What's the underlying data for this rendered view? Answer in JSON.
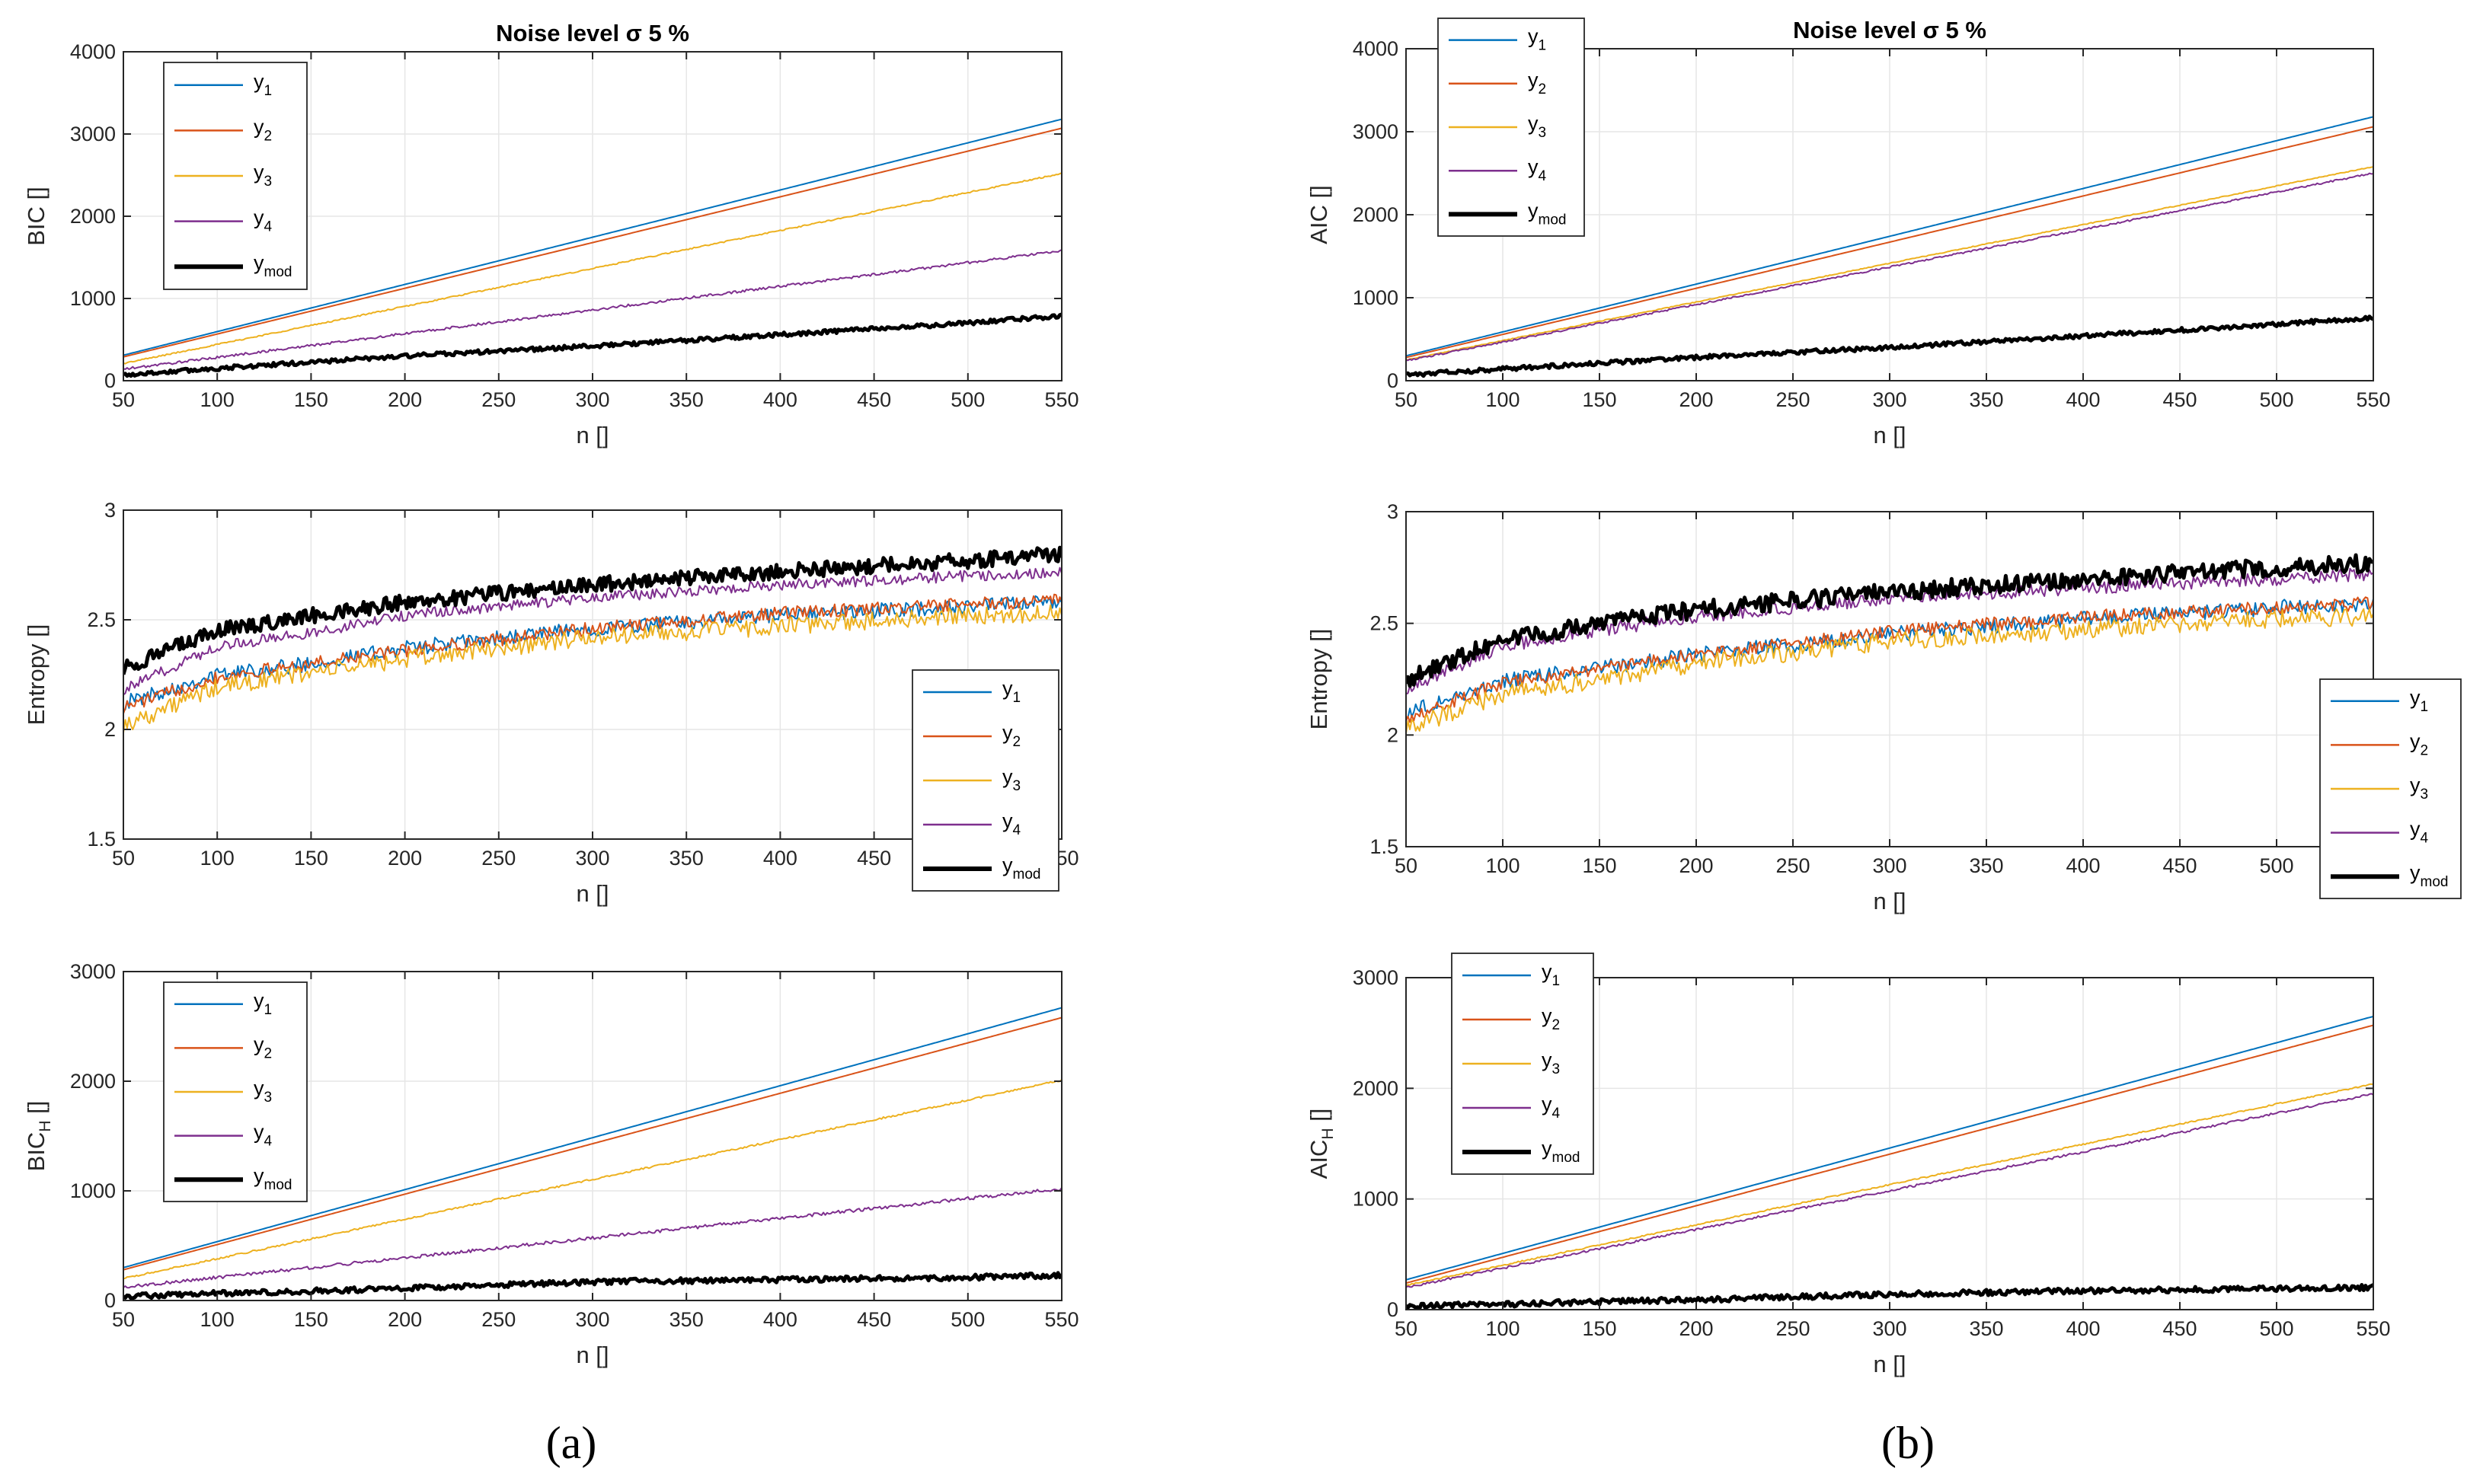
{
  "page": {
    "label_a": "(a)",
    "label_b": "(b)"
  },
  "legend": {
    "series_names": [
      "y1",
      "y2",
      "y3",
      "y4",
      "ymod"
    ],
    "series_display": [
      {
        "base": "y",
        "sub": "1"
      },
      {
        "base": "y",
        "sub": "2"
      },
      {
        "base": "y",
        "sub": "3"
      },
      {
        "base": "y",
        "sub": "4"
      },
      {
        "base": "y",
        "sub": "mod"
      }
    ]
  },
  "colors": {
    "y1": "#0072BD",
    "y2": "#D95319",
    "y3": "#EDB120",
    "y4": "#7E2F8E",
    "ymod": "#000000",
    "grid": "#e6e6e6",
    "axis": "#262626"
  },
  "chart_data": [
    {
      "id": "a1",
      "type": "line",
      "title": "Noise level σ 5 %",
      "xlabel": "n []",
      "ylabel": "BIC []",
      "ylabel_sub": "",
      "xlim": [
        50,
        550
      ],
      "ylim": [
        0,
        4000
      ],
      "xticks": [
        50,
        100,
        150,
        200,
        250,
        300,
        350,
        400,
        450,
        500,
        550
      ],
      "yticks": [
        0,
        1000,
        2000,
        3000,
        4000
      ],
      "grid": true,
      "legend": "top-left",
      "series": [
        {
          "name": "y1",
          "x": [
            50,
            550
          ],
          "y": [
            310,
            3180
          ],
          "noise": 0,
          "lw": 2
        },
        {
          "name": "y2",
          "x": [
            50,
            550
          ],
          "y": [
            290,
            3070
          ],
          "noise": 0,
          "lw": 2
        },
        {
          "name": "y3",
          "x": [
            50,
            550
          ],
          "y": [
            210,
            2520
          ],
          "noise": 8,
          "lw": 2
        },
        {
          "name": "y4",
          "x": [
            50,
            550
          ],
          "y": [
            140,
            1580
          ],
          "noise": 15,
          "lw": 2
        },
        {
          "name": "ymod",
          "x": [
            50,
            100,
            200,
            300,
            400,
            500,
            550
          ],
          "y": [
            70,
            150,
            300,
            420,
            560,
            700,
            790
          ],
          "noise": 25,
          "lw": 5
        }
      ]
    },
    {
      "id": "a2",
      "type": "line",
      "title": "",
      "xlabel": "n []",
      "ylabel": "Entropy []",
      "ylabel_sub": "",
      "xlim": [
        50,
        550
      ],
      "ylim": [
        1.5,
        3
      ],
      "xticks": [
        50,
        100,
        150,
        200,
        250,
        300,
        350,
        400,
        450,
        500,
        550
      ],
      "yticks": [
        1.5,
        2,
        2.5,
        3
      ],
      "grid": true,
      "legend": "bottom-right",
      "series": [
        {
          "name": "y1",
          "x": [
            50,
            100,
            150,
            200,
            300,
            400,
            500,
            550
          ],
          "y": [
            2.12,
            2.25,
            2.3,
            2.37,
            2.46,
            2.52,
            2.56,
            2.58
          ],
          "noise": 0.035,
          "lw": 2
        },
        {
          "name": "y2",
          "x": [
            50,
            100,
            150,
            200,
            300,
            400,
            500,
            550
          ],
          "y": [
            2.1,
            2.24,
            2.3,
            2.36,
            2.46,
            2.53,
            2.57,
            2.59
          ],
          "noise": 0.03,
          "lw": 2
        },
        {
          "name": "y3",
          "x": [
            50,
            100,
            150,
            200,
            300,
            400,
            500,
            550
          ],
          "y": [
            2.02,
            2.19,
            2.26,
            2.32,
            2.42,
            2.47,
            2.52,
            2.53
          ],
          "noise": 0.04,
          "lw": 2
        },
        {
          "name": "y4",
          "x": [
            50,
            100,
            150,
            200,
            300,
            400,
            500,
            550
          ],
          "y": [
            2.18,
            2.38,
            2.44,
            2.52,
            2.6,
            2.66,
            2.7,
            2.72
          ],
          "noise": 0.025,
          "lw": 2
        },
        {
          "name": "ymod",
          "x": [
            50,
            100,
            150,
            200,
            300,
            400,
            500,
            550
          ],
          "y": [
            2.28,
            2.45,
            2.52,
            2.58,
            2.66,
            2.72,
            2.77,
            2.8
          ],
          "noise": 0.035,
          "lw": 5
        }
      ]
    },
    {
      "id": "a3",
      "type": "line",
      "title": "",
      "xlabel": "n []",
      "ylabel": "BIC",
      "ylabel_sub": "H",
      "ylabel_suffix": " []",
      "xlim": [
        50,
        550
      ],
      "ylim": [
        0,
        3000
      ],
      "xticks": [
        50,
        100,
        150,
        200,
        250,
        300,
        350,
        400,
        450,
        500,
        550
      ],
      "yticks": [
        0,
        1000,
        2000,
        3000
      ],
      "grid": true,
      "legend": "top-left",
      "series": [
        {
          "name": "y1",
          "x": [
            50,
            550
          ],
          "y": [
            300,
            2670
          ],
          "noise": 0,
          "lw": 2
        },
        {
          "name": "y2",
          "x": [
            50,
            550
          ],
          "y": [
            280,
            2580
          ],
          "noise": 0,
          "lw": 2
        },
        {
          "name": "y3",
          "x": [
            50,
            550
          ],
          "y": [
            200,
            2010
          ],
          "noise": 8,
          "lw": 2
        },
        {
          "name": "y4",
          "x": [
            50,
            550
          ],
          "y": [
            120,
            1020
          ],
          "noise": 15,
          "lw": 2
        },
        {
          "name": "ymod",
          "x": [
            50,
            200,
            300,
            400,
            500,
            550
          ],
          "y": [
            40,
            110,
            170,
            190,
            210,
            230
          ],
          "noise": 25,
          "lw": 5
        }
      ]
    },
    {
      "id": "b1",
      "type": "line",
      "title": "Noise level σ 5 %",
      "xlabel": "n []",
      "ylabel": "AIC []",
      "ylabel_sub": "",
      "xlim": [
        50,
        550
      ],
      "ylim": [
        0,
        4000
      ],
      "xticks": [
        50,
        100,
        150,
        200,
        250,
        300,
        350,
        400,
        450,
        500,
        550
      ],
      "yticks": [
        0,
        1000,
        2000,
        3000,
        4000
      ],
      "grid": true,
      "legend": "top-left",
      "series": [
        {
          "name": "y1",
          "x": [
            50,
            550
          ],
          "y": [
            300,
            3180
          ],
          "noise": 0,
          "lw": 2
        },
        {
          "name": "y2",
          "x": [
            50,
            550
          ],
          "y": [
            280,
            3060
          ],
          "noise": 0,
          "lw": 2
        },
        {
          "name": "y3",
          "x": [
            50,
            550
          ],
          "y": [
            250,
            2580
          ],
          "noise": 5,
          "lw": 2
        },
        {
          "name": "y4",
          "x": [
            50,
            550
          ],
          "y": [
            240,
            2500
          ],
          "noise": 10,
          "lw": 2
        },
        {
          "name": "ymod",
          "x": [
            50,
            100,
            200,
            300,
            400,
            500,
            550
          ],
          "y": [
            70,
            140,
            280,
            400,
            540,
            680,
            760
          ],
          "noise": 25,
          "lw": 5
        }
      ]
    },
    {
      "id": "b2",
      "type": "line",
      "title": "",
      "xlabel": "n []",
      "ylabel": "Entropy []",
      "ylabel_sub": "",
      "xlim": [
        50,
        550
      ],
      "ylim": [
        1.5,
        3
      ],
      "xticks": [
        50,
        100,
        150,
        200,
        250,
        300,
        350,
        400,
        450,
        500,
        550
      ],
      "yticks": [
        1.5,
        2,
        2.5,
        3
      ],
      "grid": true,
      "legend": "bottom-right-outside",
      "series": [
        {
          "name": "y1",
          "x": [
            50,
            100,
            150,
            200,
            300,
            400,
            500,
            550
          ],
          "y": [
            2.1,
            2.24,
            2.3,
            2.36,
            2.45,
            2.52,
            2.57,
            2.59
          ],
          "noise": 0.035,
          "lw": 2
        },
        {
          "name": "y2",
          "x": [
            50,
            100,
            150,
            200,
            300,
            400,
            500,
            550
          ],
          "y": [
            2.08,
            2.23,
            2.3,
            2.36,
            2.46,
            2.53,
            2.57,
            2.59
          ],
          "noise": 0.03,
          "lw": 2
        },
        {
          "name": "y3",
          "x": [
            50,
            100,
            150,
            200,
            300,
            400,
            500,
            550
          ],
          "y": [
            2.03,
            2.18,
            2.25,
            2.32,
            2.42,
            2.47,
            2.52,
            2.53
          ],
          "noise": 0.04,
          "lw": 2
        },
        {
          "name": "y4",
          "x": [
            50,
            100,
            150,
            200,
            300,
            400,
            500,
            550
          ],
          "y": [
            2.2,
            2.4,
            2.47,
            2.53,
            2.61,
            2.66,
            2.7,
            2.72
          ],
          "noise": 0.03,
          "lw": 2
        },
        {
          "name": "ymod",
          "x": [
            50,
            100,
            150,
            200,
            300,
            400,
            500,
            550
          ],
          "y": [
            2.25,
            2.43,
            2.5,
            2.56,
            2.64,
            2.7,
            2.75,
            2.77
          ],
          "noise": 0.04,
          "lw": 5
        }
      ]
    },
    {
      "id": "b3",
      "type": "line",
      "title": "",
      "xlabel": "n []",
      "ylabel": "AIC",
      "ylabel_sub": "H",
      "ylabel_suffix": " []",
      "xlim": [
        50,
        550
      ],
      "ylim": [
        0,
        3000
      ],
      "xticks": [
        50,
        100,
        150,
        200,
        250,
        300,
        350,
        400,
        450,
        500,
        550
      ],
      "yticks": [
        0,
        1000,
        2000,
        3000
      ],
      "grid": true,
      "legend": "top-left",
      "series": [
        {
          "name": "y1",
          "x": [
            50,
            550
          ],
          "y": [
            270,
            2650
          ],
          "noise": 0,
          "lw": 2
        },
        {
          "name": "y2",
          "x": [
            50,
            550
          ],
          "y": [
            240,
            2570
          ],
          "noise": 0,
          "lw": 2
        },
        {
          "name": "y3",
          "x": [
            50,
            550
          ],
          "y": [
            220,
            2040
          ],
          "noise": 6,
          "lw": 2
        },
        {
          "name": "y4",
          "x": [
            50,
            550
          ],
          "y": [
            200,
            1950
          ],
          "noise": 10,
          "lw": 2
        },
        {
          "name": "ymod",
          "x": [
            50,
            200,
            300,
            400,
            500,
            550
          ],
          "y": [
            30,
            90,
            140,
            170,
            190,
            200
          ],
          "noise": 25,
          "lw": 5
        }
      ]
    }
  ]
}
